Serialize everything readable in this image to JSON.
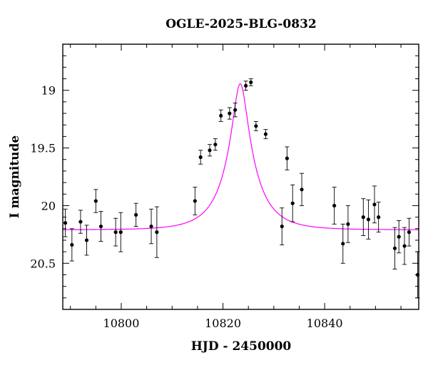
{
  "chart_data": {
    "type": "scatter",
    "title": "OGLE-2025-BLG-0832",
    "xlabel": "HJD - 2450000",
    "ylabel": "I magnitude",
    "xlim": [
      10788.5,
      10858.5
    ],
    "ylim": [
      20.9,
      18.6
    ],
    "y_inverted": true,
    "x_ticks": [
      10800,
      10820,
      10840
    ],
    "x_tick_labels": [
      "10800",
      "10820",
      "10840"
    ],
    "y_ticks": [
      19,
      19.5,
      20,
      20.5
    ],
    "y_tick_labels": [
      "19",
      "19.5",
      "20",
      "20.5"
    ],
    "grid": false,
    "colors": {
      "points": "#000000",
      "model": "#ff00ff",
      "axes": "#000000"
    },
    "series": [
      {
        "kind": "points_with_error_bars",
        "points": [
          {
            "x": 10789.0,
            "y": 20.15,
            "err": 0.12
          },
          {
            "x": 10790.3,
            "y": 20.34,
            "err": 0.14
          },
          {
            "x": 10792.0,
            "y": 20.14,
            "err": 0.1
          },
          {
            "x": 10793.2,
            "y": 20.3,
            "err": 0.13
          },
          {
            "x": 10795.0,
            "y": 19.96,
            "err": 0.1
          },
          {
            "x": 10796.0,
            "y": 20.18,
            "err": 0.13
          },
          {
            "x": 10798.9,
            "y": 20.23,
            "err": 0.12
          },
          {
            "x": 10799.9,
            "y": 20.23,
            "err": 0.17
          },
          {
            "x": 10802.9,
            "y": 20.08,
            "err": 0.1
          },
          {
            "x": 10805.9,
            "y": 20.18,
            "err": 0.15
          },
          {
            "x": 10807.0,
            "y": 20.23,
            "err": 0.22
          },
          {
            "x": 10814.5,
            "y": 19.96,
            "err": 0.12
          },
          {
            "x": 10815.6,
            "y": 19.58,
            "err": 0.06
          },
          {
            "x": 10817.4,
            "y": 19.52,
            "err": 0.05
          },
          {
            "x": 10818.5,
            "y": 19.47,
            "err": 0.05
          },
          {
            "x": 10819.6,
            "y": 19.22,
            "err": 0.05
          },
          {
            "x": 10821.3,
            "y": 19.2,
            "err": 0.05
          },
          {
            "x": 10822.4,
            "y": 19.17,
            "err": 0.06
          },
          {
            "x": 10824.5,
            "y": 18.96,
            "err": 0.04
          },
          {
            "x": 10825.5,
            "y": 18.93,
            "err": 0.03
          },
          {
            "x": 10826.5,
            "y": 19.31,
            "err": 0.04
          },
          {
            "x": 10828.4,
            "y": 19.38,
            "err": 0.04
          },
          {
            "x": 10831.6,
            "y": 20.18,
            "err": 0.16
          },
          {
            "x": 10832.6,
            "y": 19.59,
            "err": 0.1
          },
          {
            "x": 10833.7,
            "y": 19.98,
            "err": 0.16
          },
          {
            "x": 10835.5,
            "y": 19.86,
            "err": 0.14
          },
          {
            "x": 10841.9,
            "y": 20.0,
            "err": 0.16
          },
          {
            "x": 10843.6,
            "y": 20.33,
            "err": 0.17
          },
          {
            "x": 10844.6,
            "y": 20.16,
            "err": 0.16
          },
          {
            "x": 10847.6,
            "y": 20.1,
            "err": 0.16
          },
          {
            "x": 10848.6,
            "y": 20.12,
            "err": 0.17
          },
          {
            "x": 10849.8,
            "y": 19.99,
            "err": 0.16
          },
          {
            "x": 10850.6,
            "y": 20.1,
            "err": 0.13
          },
          {
            "x": 10853.8,
            "y": 20.37,
            "err": 0.18
          },
          {
            "x": 10854.6,
            "y": 20.27,
            "err": 0.14
          },
          {
            "x": 10855.7,
            "y": 20.35,
            "err": 0.16
          },
          {
            "x": 10856.6,
            "y": 20.23,
            "err": 0.12
          },
          {
            "x": 10858.3,
            "y": 20.6,
            "err": 0.2
          }
        ]
      },
      {
        "kind": "model_curve",
        "model": {
          "t0": 10823.4,
          "tE": 6.3,
          "u0": 0.22,
          "mag_base": 20.21,
          "blend_fraction": 0.61
        }
      }
    ]
  }
}
